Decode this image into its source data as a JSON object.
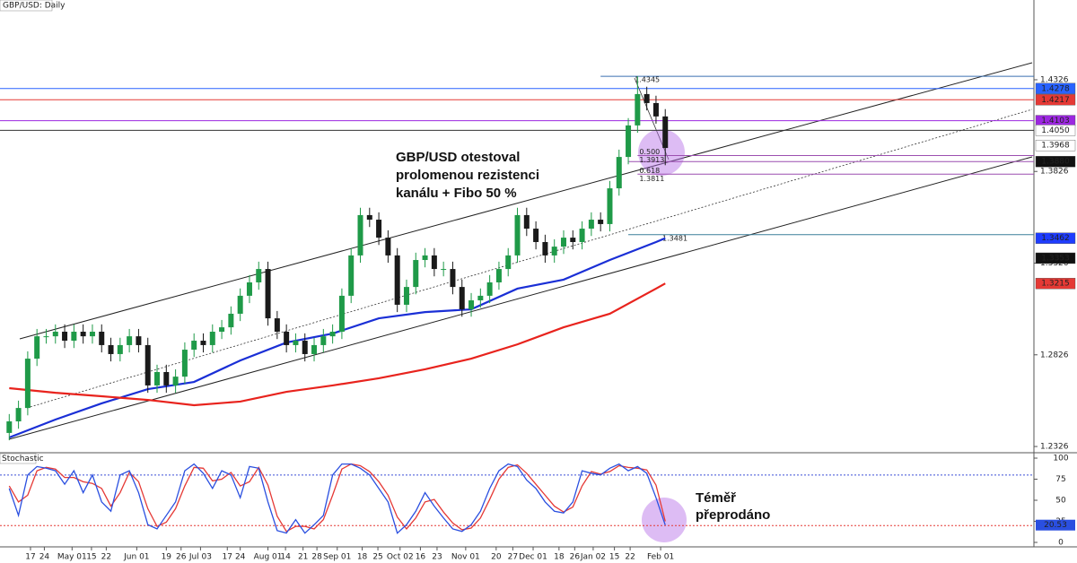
{
  "chart_data": {
    "type": "candlestick",
    "title": "GBP/USD: Daily",
    "xlim": [
      -1,
      110.9
    ],
    "xticks": [
      {
        "value": 2.3,
        "label": "17"
      },
      {
        "value": 3.8,
        "label": "24"
      },
      {
        "value": 6.8,
        "label": "May 01"
      },
      {
        "value": 8.9,
        "label": "15"
      },
      {
        "value": 10.5,
        "label": "22"
      },
      {
        "value": 13.8,
        "label": "Jun 01"
      },
      {
        "value": 17.0,
        "label": "19"
      },
      {
        "value": 18.6,
        "label": "26"
      },
      {
        "value": 20.7,
        "label": "Jul 03"
      },
      {
        "value": 23.6,
        "label": "17"
      },
      {
        "value": 25.0,
        "label": "24"
      },
      {
        "value": 28.0,
        "label": "Aug 01"
      },
      {
        "value": 29.9,
        "label": "14"
      },
      {
        "value": 31.8,
        "label": "21"
      },
      {
        "value": 33.3,
        "label": "28"
      },
      {
        "value": 35.5,
        "label": "Sep 01"
      },
      {
        "value": 38.2,
        "label": "18"
      },
      {
        "value": 39.9,
        "label": "25"
      },
      {
        "value": 42.3,
        "label": "Oct 02"
      },
      {
        "value": 44.5,
        "label": "16"
      },
      {
        "value": 46.3,
        "label": "23"
      },
      {
        "value": 49.4,
        "label": "Nov 01"
      },
      {
        "value": 52.7,
        "label": "20"
      },
      {
        "value": 54.5,
        "label": "27"
      },
      {
        "value": 56.7,
        "label": "Dec 01"
      },
      {
        "value": 59.5,
        "label": "18"
      },
      {
        "value": 61.2,
        "label": "26"
      },
      {
        "value": 63.2,
        "label": "Jan 02"
      },
      {
        "value": 65.5,
        "label": "15"
      },
      {
        "value": 67.2,
        "label": "22"
      },
      {
        "value": 70.5,
        "label": "Feb 01"
      }
    ],
    "ylim": [
      1.2292,
      1.4761
    ],
    "yticks": [
      1.2326,
      1.2826,
      1.3326,
      1.3826,
      1.4326
    ],
    "up_color": "#1f9a48",
    "down_color": "#1a1a1a",
    "open": [
      1.24,
      1.2463,
      1.2536,
      1.2805,
      1.2927,
      1.2927,
      1.2952,
      1.2903,
      1.2952,
      1.2927,
      1.2952,
      1.2879,
      1.283,
      1.2879,
      1.2927,
      1.2879,
      1.2659,
      1.2732,
      1.2659,
      1.2707,
      1.2854,
      1.2903,
      1.2879,
      1.2952,
      1.2976,
      1.305,
      1.3148,
      1.3221,
      1.3294,
      1.3025,
      1.2952,
      1.2879,
      1.2903,
      1.283,
      1.2879,
      1.2927,
      1.2952,
      1.3148,
      1.3368,
      1.3588,
      1.3563,
      1.3465,
      1.3368,
      1.3099,
      1.3196,
      1.3343,
      1.3368,
      1.3294,
      1.3294,
      1.3196,
      1.3074,
      1.3123,
      1.3148,
      1.3221,
      1.3294,
      1.3368,
      1.3588,
      1.3514,
      1.3441,
      1.3368,
      1.3416,
      1.3465,
      1.3441,
      1.3514,
      1.3563,
      1.3539,
      1.3734,
      1.3905,
      1.4077,
      1.4248,
      1.4199,
      1.4126
    ],
    "high": [
      1.2503,
      1.2576,
      1.2845,
      1.2967,
      1.2967,
      1.2992,
      1.2992,
      1.2992,
      1.2992,
      1.2992,
      1.2992,
      1.2919,
      1.2919,
      1.2967,
      1.2967,
      1.2919,
      1.2772,
      1.2772,
      1.2747,
      1.2894,
      1.2943,
      1.2943,
      1.2992,
      1.3016,
      1.309,
      1.3188,
      1.3261,
      1.3334,
      1.3334,
      1.3065,
      1.2992,
      1.2943,
      1.2943,
      1.2919,
      1.2967,
      1.2992,
      1.3188,
      1.3408,
      1.3628,
      1.3628,
      1.3603,
      1.3505,
      1.3408,
      1.3236,
      1.3383,
      1.3408,
      1.3408,
      1.3334,
      1.3334,
      1.3236,
      1.3163,
      1.3188,
      1.3261,
      1.3334,
      1.3408,
      1.3628,
      1.3628,
      1.3554,
      1.3481,
      1.3456,
      1.3505,
      1.3505,
      1.3554,
      1.3603,
      1.3603,
      1.3774,
      1.3945,
      1.4117,
      1.4345,
      1.4288,
      1.4239,
      1.4166
    ],
    "low": [
      1.236,
      1.2423,
      1.2496,
      1.2765,
      1.2887,
      1.2887,
      1.2863,
      1.2863,
      1.2887,
      1.2887,
      1.2839,
      1.279,
      1.279,
      1.2839,
      1.2839,
      1.2619,
      1.2619,
      1.2619,
      1.2619,
      1.2667,
      1.2814,
      1.2839,
      1.2839,
      1.2912,
      1.2936,
      1.301,
      1.3108,
      1.3181,
      1.2985,
      1.2912,
      1.2839,
      1.2839,
      1.279,
      1.279,
      1.2839,
      1.2887,
      1.2912,
      1.3108,
      1.3328,
      1.3523,
      1.3425,
      1.3328,
      1.3059,
      1.3059,
      1.3156,
      1.3303,
      1.3254,
      1.3254,
      1.3156,
      1.3034,
      1.3034,
      1.3083,
      1.3108,
      1.3181,
      1.3254,
      1.3328,
      1.3474,
      1.3401,
      1.3328,
      1.3328,
      1.3376,
      1.3401,
      1.3401,
      1.3474,
      1.3499,
      1.3499,
      1.3694,
      1.3865,
      1.4037,
      1.4159,
      1.4086,
      1.386
    ],
    "close": [
      1.2463,
      1.2536,
      1.2805,
      1.2927,
      1.2927,
      1.2952,
      1.2903,
      1.2952,
      1.2927,
      1.2952,
      1.2879,
      1.283,
      1.2879,
      1.2927,
      1.2879,
      1.2659,
      1.2732,
      1.2659,
      1.2707,
      1.2854,
      1.2903,
      1.2879,
      1.2952,
      1.2976,
      1.305,
      1.3148,
      1.3221,
      1.3294,
      1.3025,
      1.2952,
      1.2879,
      1.2903,
      1.283,
      1.2879,
      1.2927,
      1.2952,
      1.3148,
      1.3368,
      1.3588,
      1.3563,
      1.3465,
      1.3368,
      1.3099,
      1.3196,
      1.3343,
      1.3368,
      1.3294,
      1.3294,
      1.3196,
      1.3074,
      1.3123,
      1.3148,
      1.3221,
      1.3294,
      1.3368,
      1.3588,
      1.3514,
      1.3441,
      1.3368,
      1.3416,
      1.3465,
      1.3441,
      1.3514,
      1.3563,
      1.3539,
      1.3734,
      1.3905,
      1.4077,
      1.4248,
      1.4199,
      1.4126,
      1.3954
    ],
    "moving_averages": [
      {
        "color": "#1a2fd6",
        "x": [
          0,
          5,
          10,
          15,
          20,
          25,
          30,
          35,
          40,
          45,
          50,
          55,
          60,
          65,
          70,
          71
        ],
        "values": [
          1.2375,
          1.2473,
          1.2561,
          1.2639,
          1.2678,
          1.2795,
          1.2893,
          1.2942,
          1.3025,
          1.3059,
          1.3074,
          1.3187,
          1.3236,
          1.3343,
          1.3441,
          1.3462
        ]
      },
      {
        "color": "#e8231d",
        "x": [
          0,
          5,
          10,
          15,
          20,
          25,
          30,
          35,
          40,
          45,
          50,
          55,
          60,
          65,
          70,
          71
        ],
        "values": [
          1.2644,
          1.2619,
          1.26,
          1.258,
          1.2551,
          1.2571,
          1.2624,
          1.2659,
          1.2698,
          1.2747,
          1.2805,
          1.2883,
          1.2976,
          1.305,
          1.3187,
          1.3215
        ]
      }
    ],
    "levels": [
      {
        "price": 1.4278,
        "color": "#2962ff",
        "text_color": "#ffffff",
        "line_color": "#2962ff"
      },
      {
        "price": 1.4217,
        "color": "#e53935",
        "text_color": "#ffffff",
        "line_color": "#e53935"
      },
      {
        "price": 1.4103,
        "color": "#9c27e0",
        "text_color": "#ffffff",
        "line_color": "#9c27e0"
      },
      {
        "price": {
          "value": 1.405,
          "label": "1.4050"
        },
        "color": "#ffffff",
        "text_color": "#000000",
        "line_color": "#333333"
      },
      {
        "price": 1.3968,
        "color": "#ffffff",
        "text_color": "#000000"
      },
      {
        "price": {
          "value": 1.388,
          "label": "1.3880"
        },
        "color": "#111111",
        "text_color": "#ffffff",
        "line_color": "#9c4fb0",
        "start": 67
      },
      {
        "price": 1.3462,
        "color": "#1e3cff",
        "text_color": "#ffffff"
      },
      {
        "price": 1.3353,
        "color": "#111111",
        "text_color": "#ffffff"
      },
      {
        "price": 1.3215,
        "color": "#e53935",
        "text_color": "#ffffff"
      }
    ],
    "fib_levels": [
      {
        "price": 1.4345,
        "start": 64,
        "color": "#3a6fb0"
      },
      {
        "ratio": "0.500",
        "price": 1.3913,
        "start": 68,
        "color": "#9c4fb0"
      },
      {
        "ratio": "0.618",
        "price": 1.3811,
        "start": 68,
        "color": "#9c4fb0"
      },
      {
        "price": 1.3481,
        "start": 67,
        "color": "#3a7f9a"
      }
    ],
    "annotations": [
      {
        "lines": [
          "GBP/USD otestoval",
          "prolomenou rezistenci",
          "kanálu + Fibo 50 %"
        ]
      },
      {
        "lines": [
          "Téměř",
          "přeprodáno"
        ]
      }
    ],
    "stochastic": {
      "title": "Stochastic",
      "ylim": [
        -5.3,
        106.4
      ],
      "yticks": [
        0,
        25,
        50,
        75,
        100
      ],
      "levels": [
        80,
        20
      ],
      "level_colors": [
        "#3b4fd8",
        "#e53935"
      ],
      "k_color": "#2a4fe0",
      "d_color": "#e53935",
      "k": [
        64,
        32,
        80,
        90,
        88,
        85,
        69,
        85,
        59,
        80,
        48,
        37,
        80,
        85,
        59,
        21,
        16,
        32,
        48,
        85,
        93,
        82,
        64,
        85,
        80,
        53,
        90,
        88,
        48,
        14,
        11,
        27,
        11,
        21,
        32,
        80,
        93,
        93,
        88,
        80,
        64,
        48,
        11,
        21,
        37,
        59,
        43,
        29,
        16,
        13,
        21,
        37,
        64,
        85,
        93,
        90,
        74,
        64,
        48,
        37,
        35,
        48,
        85,
        82,
        80,
        88,
        93,
        85,
        90,
        82,
        53,
        20.53
      ],
      "d": [
        67,
        48,
        56,
        85,
        89,
        87,
        77,
        77,
        72,
        70,
        64,
        43,
        59,
        83,
        72,
        40,
        19,
        24,
        40,
        67,
        89,
        88,
        73,
        75,
        83,
        67,
        72,
        89,
        68,
        31,
        13,
        19,
        19,
        16,
        27,
        56,
        87,
        93,
        91,
        84,
        72,
        56,
        30,
        16,
        29,
        48,
        51,
        36,
        23,
        15,
        17,
        29,
        51,
        75,
        89,
        92,
        82,
        69,
        56,
        43,
        36,
        42,
        67,
        84,
        81,
        84,
        91,
        89,
        88,
        86,
        68,
        25
      ]
    }
  }
}
